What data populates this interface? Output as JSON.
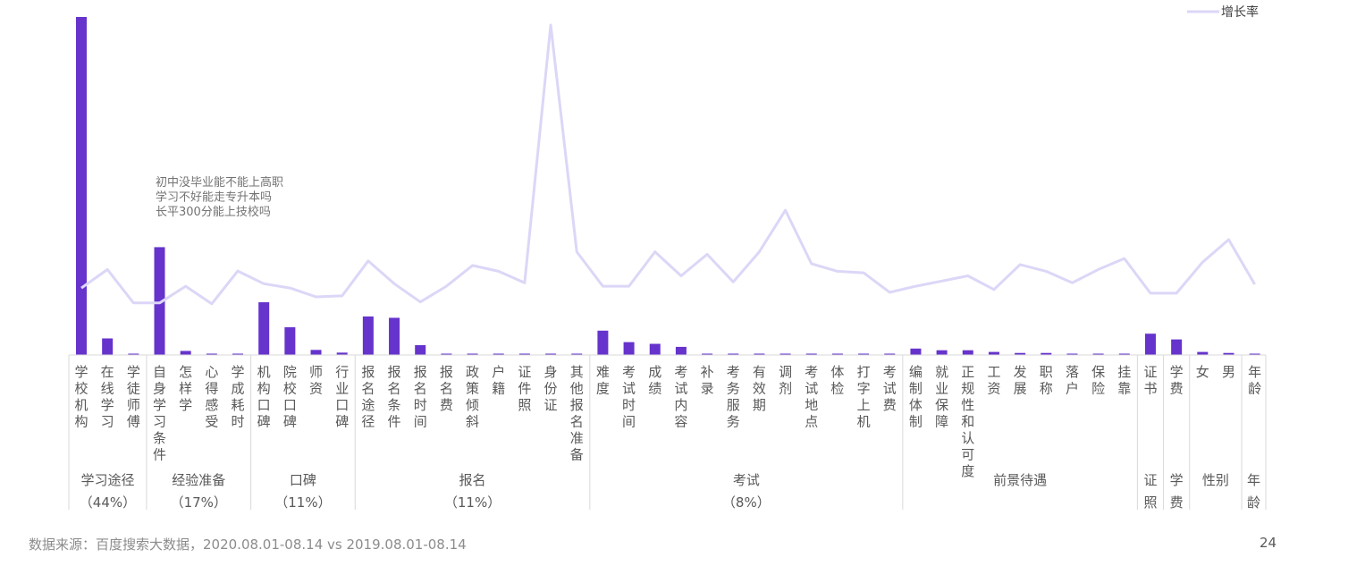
{
  "chart_data": {
    "type": "bar",
    "legend": {
      "label": "增长率",
      "placement": "top-right"
    },
    "colors": {
      "bar": "#6633cc",
      "line": "#dcd6f7",
      "axis": "#d9d9d9",
      "text": "#595959",
      "source": "#8c8c8c"
    },
    "annotation": [
      "初中没毕业能不能上高职",
      "学习不好能走专升本吗",
      "长平300分能上技校吗"
    ],
    "categories": [
      "学校机构",
      "在线学习",
      "学徒师傅",
      "自身学习条件",
      "怎样学",
      "心得感受",
      "学成耗时",
      "机构口碑",
      "院校口碑",
      "师资",
      "行业口碑",
      "报名途径",
      "报名条件",
      "报名时间",
      "报名费",
      "政策倾斜",
      "户籍",
      "证件照",
      "身份证",
      "其他报名准备",
      "难度",
      "考试时间",
      "成绩",
      "考试内容",
      "补录",
      "考务服务",
      "有效期",
      "调剂",
      "考试地点",
      "体检",
      "打字上机",
      "考试费",
      "编制体制",
      "就业保障",
      "正规性和认可度",
      "工资",
      "发展",
      "职称",
      "落户",
      "保险",
      "挂靠",
      "证书",
      "学费",
      "女",
      "男",
      "年龄"
    ],
    "values": [
      100,
      4.9,
      0.3,
      31.9,
      1.2,
      0.2,
      0.2,
      15.6,
      8.2,
      1.5,
      0.7,
      11.4,
      11.0,
      2.9,
      0.2,
      0.2,
      0.2,
      0.2,
      0.2,
      0.2,
      7.2,
      3.8,
      3.3,
      2.4,
      0.2,
      0.2,
      0.2,
      0.2,
      0.2,
      0.2,
      0.2,
      0.2,
      1.9,
      1.4,
      1.4,
      0.9,
      0.6,
      0.6,
      0.2,
      0.2,
      0.2,
      6.3,
      4.6,
      0.9,
      0.6,
      0.2
    ],
    "growth_rate": [
      13.5,
      19.6,
      8.6,
      8.6,
      14.1,
      8.3,
      19.1,
      14.9,
      13.5,
      10.6,
      10.9,
      22.4,
      14.9,
      8.9,
      14.1,
      20.9,
      19.0,
      15.2,
      100,
      25.4,
      14.1,
      14.1,
      25.4,
      17.5,
      24.6,
      15.5,
      25.4,
      39.1,
      21.5,
      19.0,
      18.5,
      12.1,
      14.1,
      15.8,
      17.5,
      13.0,
      21.2,
      19.0,
      15.2,
      19.6,
      23.2,
      11.8,
      11.8,
      22.0,
      29.4,
      14.7
    ],
    "groups": [
      {
        "name": "学习途径",
        "pct": "（44%）",
        "count": 3
      },
      {
        "name": "经验准备",
        "pct": "（17%）",
        "count": 4
      },
      {
        "name": "口碑",
        "pct": "（11%）",
        "count": 4
      },
      {
        "name": "报名",
        "pct": "（11%）",
        "count": 9
      },
      {
        "name": "考试",
        "pct": "（8%）",
        "count": 12
      },
      {
        "name": "前景待遇",
        "pct": "",
        "count": 9
      },
      {
        "name": "证照",
        "pct": "",
        "count": 1,
        "vertical": true
      },
      {
        "name": "学费",
        "pct": "",
        "count": 1,
        "vertical": true
      },
      {
        "name": "性别",
        "pct": "",
        "count": 2
      },
      {
        "name": "年龄",
        "pct": "",
        "count": 1,
        "vertical": true
      }
    ]
  },
  "footer": {
    "source": "数据来源：百度搜索大数据，2020.08.01-08.14 vs 2019.08.01-08.14",
    "page_number": "24"
  }
}
